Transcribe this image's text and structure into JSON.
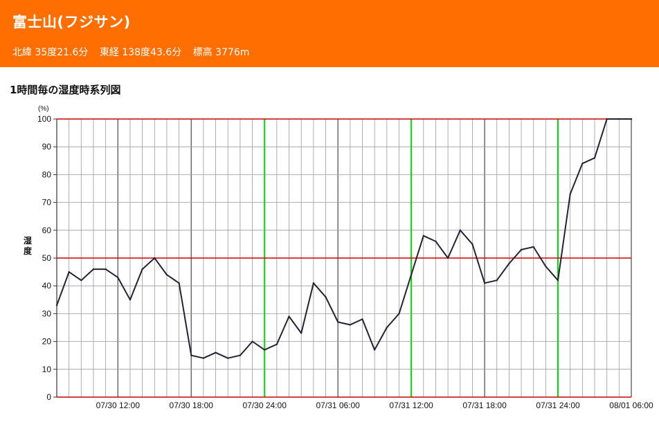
{
  "header": {
    "title": "富士山(フジサン)",
    "lat": "北緯 35度21.6分",
    "lon": "東経 138度43.6分",
    "elev": "標高 3776m"
  },
  "section_title": "1時間毎の湿度時系列図",
  "colors": {
    "header_bg": "#ff6e00",
    "line": "#222233",
    "threshold": "#cc0000",
    "midnight": "#00dd00",
    "grid": "#999999"
  },
  "chart_data": {
    "type": "line",
    "yunit": "(%)",
    "ylabel": "湿度",
    "ylim": [
      0,
      100
    ],
    "yticks": [
      0,
      10,
      20,
      30,
      40,
      50,
      60,
      70,
      80,
      90,
      100
    ],
    "threshold_lines": [
      0,
      50,
      100
    ],
    "xlim": [
      "07/30 07:00",
      "08/01 06:00"
    ],
    "x_tick_labels": [
      {
        "time": "07/30 12:00",
        "label": "07/30 12:00"
      },
      {
        "time": "07/30 18:00",
        "label": "07/30 18:00"
      },
      {
        "time": "07/31 00:00",
        "label": "07/30 24:00"
      },
      {
        "time": "07/31 06:00",
        "label": "07/31 06:00"
      },
      {
        "time": "07/31 12:00",
        "label": "07/31 12:00"
      },
      {
        "time": "07/31 18:00",
        "label": "07/31 18:00"
      },
      {
        "time": "08/01 00:00",
        "label": "07/31 24:00"
      },
      {
        "time": "08/01 06:00",
        "label": "08/01 06:00"
      }
    ],
    "midnight_markers": [
      "07/31 00:00",
      "07/31 12:00",
      "08/01 00:00"
    ],
    "series": [
      {
        "x": [
          "07/30 07:00",
          "07/30 08:00",
          "07/30 09:00",
          "07/30 10:00",
          "07/30 11:00",
          "07/30 12:00",
          "07/30 13:00",
          "07/30 14:00",
          "07/30 15:00",
          "07/30 16:00",
          "07/30 17:00",
          "07/30 18:00",
          "07/30 19:00",
          "07/30 20:00",
          "07/30 21:00",
          "07/30 22:00",
          "07/30 23:00",
          "07/31 00:00",
          "07/31 01:00",
          "07/31 02:00",
          "07/31 03:00",
          "07/31 04:00",
          "07/31 05:00",
          "07/31 06:00",
          "07/31 07:00",
          "07/31 08:00",
          "07/31 09:00",
          "07/31 10:00",
          "07/31 11:00",
          "07/31 12:00",
          "07/31 13:00",
          "07/31 14:00",
          "07/31 15:00",
          "07/31 16:00",
          "07/31 17:00",
          "07/31 18:00",
          "07/31 19:00",
          "07/31 20:00",
          "07/31 21:00",
          "07/31 22:00",
          "07/31 23:00",
          "08/01 00:00",
          "08/01 01:00",
          "08/01 02:00",
          "08/01 03:00",
          "08/01 04:00",
          "08/01 05:00",
          "08/01 06:00"
        ],
        "values": [
          33,
          45,
          42,
          46,
          46,
          43,
          35,
          46,
          50,
          44,
          41,
          15,
          14,
          16,
          14,
          15,
          20,
          17,
          19,
          29,
          23,
          41,
          36,
          27,
          26,
          28,
          17,
          25,
          30,
          44,
          58,
          56,
          50,
          60,
          55,
          41,
          42,
          48,
          53,
          54,
          47,
          42,
          73,
          84,
          86,
          100,
          100,
          100
        ]
      }
    ]
  }
}
